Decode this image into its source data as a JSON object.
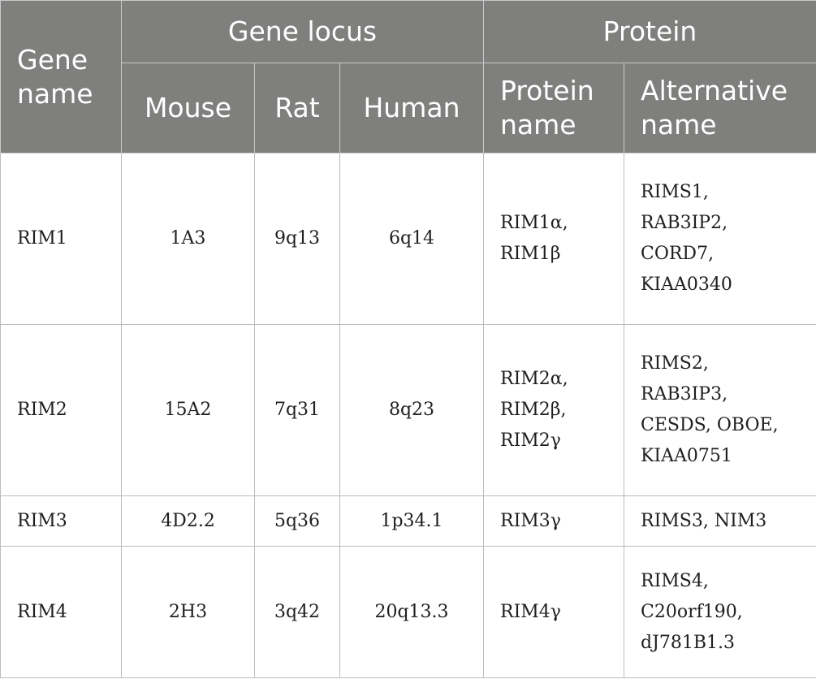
{
  "header": {
    "gene_name": [
      "Gene",
      "name"
    ],
    "gene_locus": "Gene locus",
    "protein": "Protein",
    "mouse": "Mouse",
    "rat": "Rat",
    "human": "Human",
    "protein_name": [
      "Protein",
      "name"
    ],
    "alternative_name": [
      "Alternative",
      "name"
    ]
  },
  "rows": [
    {
      "gene": "RIM1",
      "mouse": "1A3",
      "rat": "9q13",
      "human": "6q14",
      "protein": [
        "RIM1α,",
        "RIM1β"
      ],
      "alt": [
        "RIMS1,",
        "RAB3IP2,",
        "CORD7,",
        "KIAA0340"
      ]
    },
    {
      "gene": "RIM2",
      "mouse": "15A2",
      "rat": "7q31",
      "human": "8q23",
      "protein": [
        "RIM2α,",
        "RIM2β,",
        "RIM2γ"
      ],
      "alt": [
        "RIMS2,",
        "RAB3IP3,",
        "CESDS, OBOE,",
        "KIAA0751"
      ]
    },
    {
      "gene": "RIM3",
      "mouse": "4D2.2",
      "rat": "5q36",
      "human": "1p34.1",
      "protein": [
        "RIM3γ"
      ],
      "alt": [
        "RIMS3, NIM3"
      ]
    },
    {
      "gene": "RIM4",
      "mouse": "2H3",
      "rat": "3q42",
      "human": "20q13.3",
      "protein": [
        "RIM4γ"
      ],
      "alt": [
        "RIMS4,",
        "C20orf190,",
        "dJ781B1.3"
      ]
    }
  ]
}
